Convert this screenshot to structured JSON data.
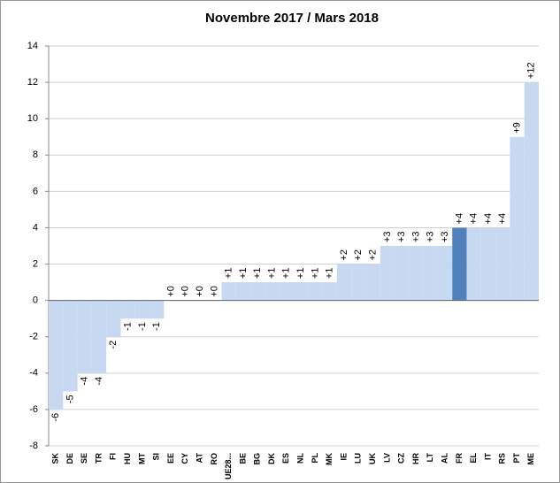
{
  "chart_data": {
    "type": "bar",
    "title": "Novembre 2017 / Mars 2018",
    "categories": [
      "SK",
      "DE",
      "SE",
      "TR",
      "FI",
      "HU",
      "MT",
      "SI",
      "EE",
      "CY",
      "AT",
      "RO",
      "UE28...",
      "BE",
      "BG",
      "DK",
      "ES",
      "NL",
      "PL",
      "MK",
      "IE",
      "LU",
      "UK",
      "LV",
      "CZ",
      "HR",
      "LT",
      "AL",
      "FR",
      "EL",
      "IT",
      "RS",
      "PT",
      "ME"
    ],
    "values": [
      -6,
      -5,
      -4,
      -4,
      -2,
      -1,
      -1,
      -1,
      0,
      0,
      0,
      0,
      1,
      1,
      1,
      1,
      1,
      1,
      1,
      1,
      2,
      2,
      2,
      3,
      3,
      3,
      3,
      3,
      4,
      4,
      4,
      4,
      9,
      12
    ],
    "value_labels": [
      "-6",
      "-5",
      "-4",
      "-4",
      "-2",
      "-1",
      "-1",
      "-1",
      "+0",
      "+0",
      "+0",
      "+0",
      "+1",
      "+1",
      "+1",
      "+1",
      "+1",
      "+1",
      "+1",
      "+1",
      "+2",
      "+2",
      "+2",
      "+3",
      "+3",
      "+3",
      "+3",
      "+3",
      "+4",
      "+4",
      "+4",
      "+4",
      "+9",
      "+12"
    ],
    "colors": [
      "#c6d9f1",
      "#c6d9f1",
      "#c6d9f1",
      "#c6d9f1",
      "#c6d9f1",
      "#c6d9f1",
      "#c6d9f1",
      "#c6d9f1",
      "#c6d9f1",
      "#c6d9f1",
      "#c6d9f1",
      "#c6d9f1",
      "#c6d9f1",
      "#c6d9f1",
      "#c6d9f1",
      "#c6d9f1",
      "#c6d9f1",
      "#c6d9f1",
      "#c6d9f1",
      "#c6d9f1",
      "#c6d9f1",
      "#c6d9f1",
      "#c6d9f1",
      "#c6d9f1",
      "#c6d9f1",
      "#c6d9f1",
      "#c6d9f1",
      "#c6d9f1",
      "#4f81bd",
      "#c6d9f1",
      "#c6d9f1",
      "#c6d9f1",
      "#c6d9f1",
      "#c6d9f1"
    ],
    "ylim": [
      -8,
      14
    ],
    "yticks": [
      -8,
      -6,
      -4,
      -2,
      0,
      2,
      4,
      6,
      8,
      10,
      12,
      14
    ],
    "grid": true
  }
}
